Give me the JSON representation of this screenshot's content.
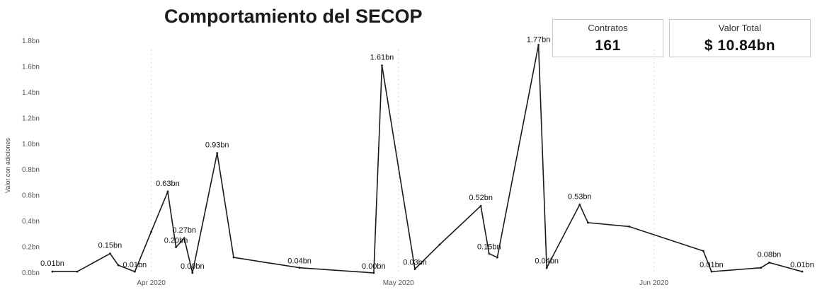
{
  "header": {
    "title": "Comportamiento del SECOP"
  },
  "kpis": {
    "contratos_label": "Contratos",
    "contratos_value": "161",
    "valor_label": "Valor Total",
    "valor_value": "$ 10.84bn"
  },
  "colors": {
    "line": "#1a1a1a",
    "grid": "#d8d8d8"
  },
  "chart_data": {
    "type": "line",
    "ylabel": "Valor con adiciones",
    "ylim": [
      0,
      1.8
    ],
    "y_ticks": [
      {
        "value": 0.0,
        "label": "0.0bn"
      },
      {
        "value": 0.2,
        "label": "0.2bn"
      },
      {
        "value": 0.4,
        "label": "0.4bn"
      },
      {
        "value": 0.6,
        "label": "0.6bn"
      },
      {
        "value": 0.8,
        "label": "0.8bn"
      },
      {
        "value": 1.0,
        "label": "1.0bn"
      },
      {
        "value": 1.2,
        "label": "1.2bn"
      },
      {
        "value": 1.4,
        "label": "1.4bn"
      },
      {
        "value": 1.6,
        "label": "1.6bn"
      },
      {
        "value": 1.8,
        "label": "1.8bn"
      }
    ],
    "xlim": [
      "2020-03-20",
      "2020-06-19"
    ],
    "x_ticks": [
      {
        "date": "2020-04-01",
        "label": "Apr 2020"
      },
      {
        "date": "2020-05-01",
        "label": "May 2020"
      },
      {
        "date": "2020-06-01",
        "label": "Jun 2020"
      }
    ],
    "grid": false,
    "points": [
      {
        "date": "2020-03-20",
        "value": 0.01,
        "label": "0.01bn"
      },
      {
        "date": "2020-03-23",
        "value": 0.01,
        "label": ""
      },
      {
        "date": "2020-03-27",
        "value": 0.15,
        "label": "0.15bn"
      },
      {
        "date": "2020-03-28",
        "value": 0.06,
        "label": ""
      },
      {
        "date": "2020-03-30",
        "value": 0.01,
        "label": "0.01bn"
      },
      {
        "date": "2020-04-01",
        "value": 0.32,
        "label": ""
      },
      {
        "date": "2020-04-03",
        "value": 0.63,
        "label": "0.63bn"
      },
      {
        "date": "2020-04-04",
        "value": 0.2,
        "label": "0.20bn"
      },
      {
        "date": "2020-04-05",
        "value": 0.27,
        "label": "0.27bn"
      },
      {
        "date": "2020-04-06",
        "value": 0.0,
        "label": "0.00bn"
      },
      {
        "date": "2020-04-09",
        "value": 0.93,
        "label": "0.93bn"
      },
      {
        "date": "2020-04-11",
        "value": 0.12,
        "label": ""
      },
      {
        "date": "2020-04-19",
        "value": 0.04,
        "label": "0.04bn"
      },
      {
        "date": "2020-04-28",
        "value": 0.0,
        "label": "0.00bn"
      },
      {
        "date": "2020-04-29",
        "value": 1.61,
        "label": "1.61bn"
      },
      {
        "date": "2020-05-03",
        "value": 0.03,
        "label": "0.03bn"
      },
      {
        "date": "2020-05-06",
        "value": 0.22,
        "label": ""
      },
      {
        "date": "2020-05-11",
        "value": 0.52,
        "label": "0.52bn"
      },
      {
        "date": "2020-05-12",
        "value": 0.15,
        "label": "0.15bn"
      },
      {
        "date": "2020-05-13",
        "value": 0.12,
        "label": ""
      },
      {
        "date": "2020-05-18",
        "value": 1.77,
        "label": "1.77bn"
      },
      {
        "date": "2020-05-19",
        "value": 0.04,
        "label": "0.04bn"
      },
      {
        "date": "2020-05-23",
        "value": 0.53,
        "label": "0.53bn"
      },
      {
        "date": "2020-05-24",
        "value": 0.39,
        "label": ""
      },
      {
        "date": "2020-05-29",
        "value": 0.36,
        "label": ""
      },
      {
        "date": "2020-06-07",
        "value": 0.17,
        "label": ""
      },
      {
        "date": "2020-06-08",
        "value": 0.01,
        "label": "0.01bn"
      },
      {
        "date": "2020-06-14",
        "value": 0.04,
        "label": ""
      },
      {
        "date": "2020-06-15",
        "value": 0.08,
        "label": "0.08bn"
      },
      {
        "date": "2020-06-19",
        "value": 0.01,
        "label": "0.01bn"
      }
    ]
  }
}
